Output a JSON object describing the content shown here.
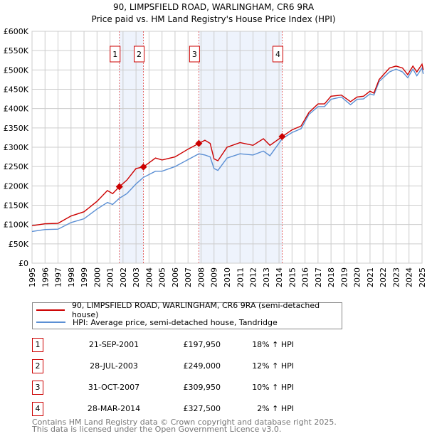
{
  "chart_data": {
    "type": "line",
    "title": "90, LIMPSFIELD ROAD, WARLINGHAM, CR6 9RA",
    "subtitle": "Price paid vs. HM Land Registry's House Price Index (HPI)",
    "xlim": [
      1995,
      2025
    ],
    "ylim": [
      0,
      600000
    ],
    "x_ticks": [
      "1995",
      "1996",
      "1997",
      "1998",
      "1999",
      "2000",
      "2001",
      "2002",
      "2003",
      "2004",
      "2005",
      "2006",
      "2007",
      "2008",
      "2009",
      "2010",
      "2011",
      "2012",
      "2013",
      "2014",
      "2015",
      "2016",
      "2017",
      "2018",
      "2019",
      "2020",
      "2021",
      "2022",
      "2023",
      "2024",
      "2025"
    ],
    "y_ticks": [
      "£0",
      "£50K",
      "£100K",
      "£150K",
      "£200K",
      "£250K",
      "£300K",
      "£350K",
      "£400K",
      "£450K",
      "£500K",
      "£550K",
      "£600K"
    ],
    "grid": true,
    "series": [
      {
        "name": "90, LIMPSFIELD ROAD, WARLINGHAM, CR6 9RA (semi-detached house)",
        "color": "#cc0000",
        "x": [
          1995,
          1996,
          1997,
          1998,
          1999,
          2000,
          2000.8,
          2001.2,
          2001.72,
          2002.3,
          2003,
          2003.57,
          2004.5,
          2005,
          2006,
          2007,
          2007.83,
          2008.3,
          2008.7,
          2009.0,
          2009.3,
          2010,
          2011,
          2012,
          2012.8,
          2013.3,
          2014.24,
          2015,
          2015.7,
          2016.3,
          2017,
          2017.5,
          2018,
          2018.8,
          2019.5,
          2020,
          2020.5,
          2021,
          2021.3,
          2021.7,
          2022.5,
          2023,
          2023.5,
          2023.9,
          2024.3,
          2024.6,
          2025,
          2025.1
        ],
        "y": [
          97000,
          102000,
          103000,
          122000,
          133000,
          160000,
          188000,
          180000,
          197950,
          215000,
          245000,
          249000,
          272000,
          267000,
          275000,
          295000,
          309950,
          318000,
          310000,
          270000,
          265000,
          300000,
          312000,
          305000,
          322000,
          305000,
          327500,
          345000,
          355000,
          390000,
          412000,
          412000,
          432000,
          435000,
          418000,
          430000,
          432000,
          445000,
          440000,
          475000,
          505000,
          510000,
          505000,
          488000,
          510000,
          495000,
          515000,
          500000
        ]
      },
      {
        "name": "HPI: Average price, semi-detached house, Tandridge",
        "color": "#5b8fd4",
        "x": [
          1995,
          1996,
          1997,
          1998,
          1999,
          2000,
          2000.8,
          2001.2,
          2001.72,
          2002.3,
          2003,
          2003.57,
          2004.5,
          2005,
          2006,
          2007,
          2007.83,
          2008.3,
          2008.7,
          2009.0,
          2009.3,
          2010,
          2011,
          2012,
          2012.8,
          2013.3,
          2014.24,
          2015,
          2015.7,
          2016.3,
          2017,
          2017.5,
          2018,
          2018.8,
          2019.5,
          2020,
          2020.5,
          2021,
          2021.3,
          2021.7,
          2022.5,
          2023,
          2023.5,
          2023.9,
          2024.3,
          2024.6,
          2025,
          2025.1
        ],
        "y": [
          82000,
          87000,
          88000,
          105000,
          115000,
          140000,
          157000,
          152000,
          168000,
          180000,
          205000,
          222000,
          238000,
          238000,
          250000,
          268000,
          283000,
          280000,
          275000,
          245000,
          240000,
          272000,
          283000,
          280000,
          290000,
          278000,
          322000,
          338000,
          348000,
          385000,
          405000,
          405000,
          424000,
          430000,
          410000,
          424000,
          425000,
          438000,
          435000,
          470000,
          495000,
          502000,
          495000,
          480000,
          502000,
          485000,
          505000,
          490000
        ]
      }
    ],
    "sales": [
      {
        "label": "1",
        "x": 2001.72,
        "y": 197950
      },
      {
        "label": "2",
        "x": 2003.57,
        "y": 249000
      },
      {
        "label": "3",
        "x": 2007.83,
        "y": 309950
      },
      {
        "label": "4",
        "x": 2014.24,
        "y": 327500
      }
    ],
    "legend_placement": "bottom"
  },
  "legend": {
    "red": "90, LIMPSFIELD ROAD, WARLINGHAM, CR6 9RA (semi-detached house)",
    "blue": "HPI: Average price, semi-detached house, Tandridge"
  },
  "table": [
    {
      "num": "1",
      "date": "21-SEP-2001",
      "price": "£197,950",
      "hpi": "18% ↑ HPI"
    },
    {
      "num": "2",
      "date": "28-JUL-2003",
      "price": "£249,000",
      "hpi": "12% ↑ HPI"
    },
    {
      "num": "3",
      "date": "31-OCT-2007",
      "price": "£309,950",
      "hpi": "10% ↑ HPI"
    },
    {
      "num": "4",
      "date": "28-MAR-2014",
      "price": "£327,500",
      "hpi": "2% ↑ HPI"
    }
  ],
  "footer": {
    "line1": "Contains HM Land Registry data © Crown copyright and database right 2025.",
    "line2": "This data is licensed under the Open Government Licence v3.0."
  }
}
